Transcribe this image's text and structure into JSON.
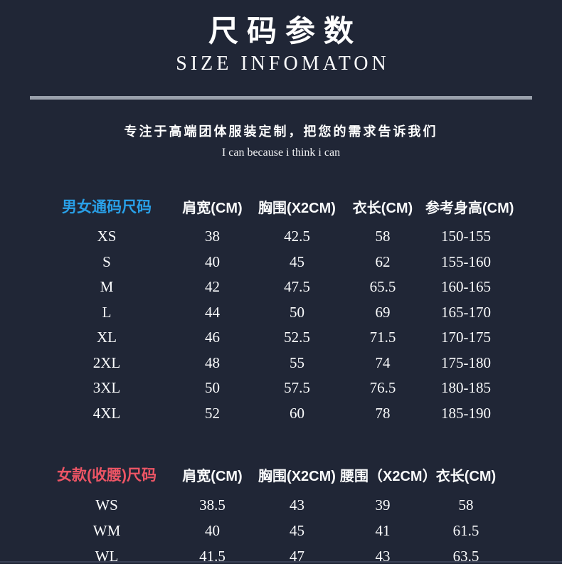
{
  "header": {
    "title_cn": "尺码参数",
    "title_en": "SIZE INFOMATON",
    "tagline": "专注于高端团体服装定制，把您的需求告诉我们",
    "slogan": "I can because i think i can"
  },
  "colors": {
    "background": "#202636",
    "accent_blue": "#29a0e8",
    "accent_red": "#ed5565",
    "divider_gray": "#99a0ab",
    "text_white": "#ffffff"
  },
  "chart_data": [
    {
      "type": "table",
      "title": "男女通码尺码",
      "title_color": "#29a0e8",
      "columns": [
        "男女通码尺码",
        "肩宽(CM)",
        "胸围(X2CM)",
        "衣长(CM)",
        "参考身高(CM)"
      ],
      "rows": [
        [
          "XS",
          "38",
          "42.5",
          "58",
          "150-155"
        ],
        [
          "S",
          "40",
          "45",
          "62",
          "155-160"
        ],
        [
          "M",
          "42",
          "47.5",
          "65.5",
          "160-165"
        ],
        [
          "L",
          "44",
          "50",
          "69",
          "165-170"
        ],
        [
          "XL",
          "46",
          "52.5",
          "71.5",
          "170-175"
        ],
        [
          "2XL",
          "48",
          "55",
          "74",
          "175-180"
        ],
        [
          "3XL",
          "50",
          "57.5",
          "76.5",
          "180-185"
        ],
        [
          "4XL",
          "52",
          "60",
          "78",
          "185-190"
        ]
      ]
    },
    {
      "type": "table",
      "title": "女款(收腰)尺码",
      "title_color": "#ed5565",
      "columns": [
        "女款(收腰)尺码",
        "肩宽(CM)",
        "胸围(X2CM)",
        "腰围（X2CM）",
        "衣长(CM)"
      ],
      "rows": [
        [
          "WS",
          "38.5",
          "43",
          "39",
          "58"
        ],
        [
          "WM",
          "40",
          "45",
          "41",
          "61.5"
        ],
        [
          "WL",
          "41.5",
          "47",
          "43",
          "63.5"
        ]
      ]
    }
  ]
}
